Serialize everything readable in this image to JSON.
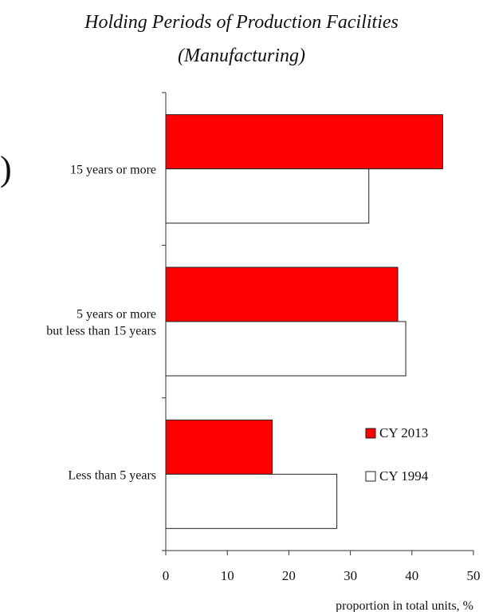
{
  "chart_data": {
    "type": "bar",
    "orientation": "horizontal",
    "title": "Holding Periods of Production Facilities",
    "subtitle": "(Manufacturing)",
    "categories": [
      [
        "15 years or more"
      ],
      [
        "5 years or more",
        "but less than 15 years"
      ],
      [
        "Less than 5 years"
      ]
    ],
    "series": [
      {
        "name": "CY 2013",
        "values": [
          45.0,
          37.7,
          17.3
        ],
        "color": "#ff0000"
      },
      {
        "name": "CY 1994",
        "values": [
          33.0,
          39.0,
          27.8
        ],
        "color": "#ffffff"
      }
    ],
    "xlabel": "proportion in total units, %",
    "xlim": [
      0,
      50
    ],
    "xticks": [
      "0",
      "10",
      "20",
      "30",
      "40",
      "50"
    ],
    "grid": false,
    "legend_position": "bottom-right"
  },
  "page": {
    "edge_glyph": ")"
  }
}
